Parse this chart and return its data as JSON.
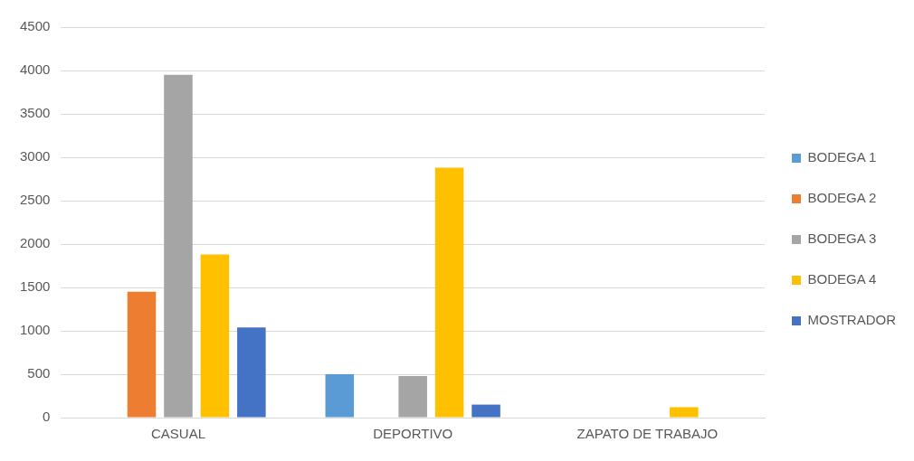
{
  "chart_data": {
    "type": "bar",
    "categories": [
      "CASUAL",
      "DEPORTIVO",
      "ZAPATO DE TRABAJO"
    ],
    "series": [
      {
        "name": "BODEGA 1",
        "color": "#5b9bd5",
        "values": [
          0,
          500,
          0
        ]
      },
      {
        "name": "BODEGA 2",
        "color": "#ed7d31",
        "values": [
          1450,
          0,
          0
        ]
      },
      {
        "name": "BODEGA 3",
        "color": "#a5a5a5",
        "values": [
          3950,
          480,
          0
        ]
      },
      {
        "name": "BODEGA 4",
        "color": "#ffc000",
        "values": [
          1880,
          2880,
          120
        ]
      },
      {
        "name": "MOSTRADOR",
        "color": "#4472c4",
        "values": [
          1040,
          150,
          0
        ]
      }
    ],
    "ylim": [
      0,
      4500
    ],
    "yticks": [
      0,
      500,
      1000,
      1500,
      2000,
      2500,
      3000,
      3500,
      4000,
      4500
    ],
    "grid": "y",
    "legend": "right"
  }
}
